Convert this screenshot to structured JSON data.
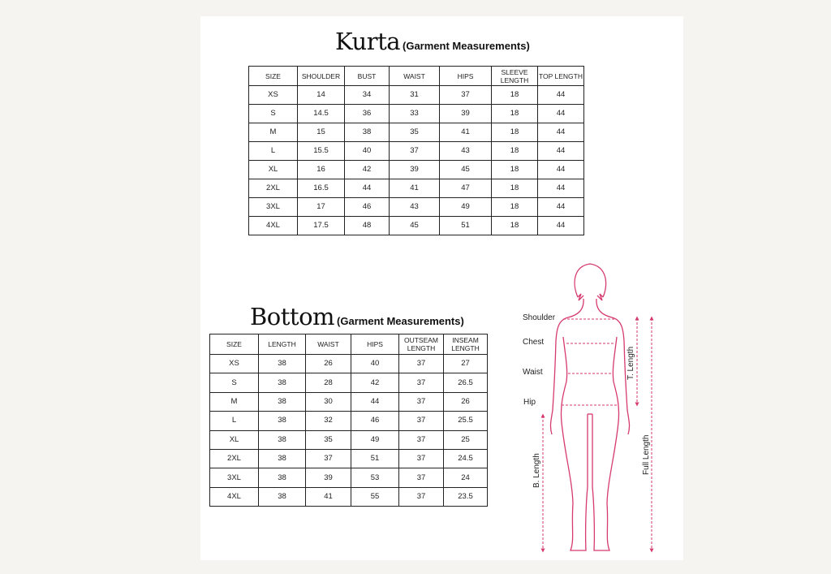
{
  "kurta": {
    "title": "Kurta",
    "subtitle": "(Garment Measurements)",
    "headers": [
      "SIZE",
      "SHOULDER",
      "BUST",
      "WAIST",
      "HIPS",
      "SLEEVE LENGTH",
      "TOP LENGTH"
    ],
    "rows": [
      [
        "XS",
        "14",
        "34",
        "31",
        "37",
        "18",
        "44"
      ],
      [
        "S",
        "14.5",
        "36",
        "33",
        "39",
        "18",
        "44"
      ],
      [
        "M",
        "15",
        "38",
        "35",
        "41",
        "18",
        "44"
      ],
      [
        "L",
        "15.5",
        "40",
        "37",
        "43",
        "18",
        "44"
      ],
      [
        "XL",
        "16",
        "42",
        "39",
        "45",
        "18",
        "44"
      ],
      [
        "2XL",
        "16.5",
        "44",
        "41",
        "47",
        "18",
        "44"
      ],
      [
        "3XL",
        "17",
        "46",
        "43",
        "49",
        "18",
        "44"
      ],
      [
        "4XL",
        "17.5",
        "48",
        "45",
        "51",
        "18",
        "44"
      ]
    ]
  },
  "bottom": {
    "title": "Bottom",
    "subtitle": "(Garment Measurements)",
    "headers": [
      "SIZE",
      "LENGTH",
      "WAIST",
      "HIPS",
      "OUTSEAM LENGTH",
      "INSEAM LENGTH"
    ],
    "rows": [
      [
        "XS",
        "38",
        "26",
        "40",
        "37",
        "27"
      ],
      [
        "S",
        "38",
        "28",
        "42",
        "37",
        "26.5"
      ],
      [
        "M",
        "38",
        "30",
        "44",
        "37",
        "26"
      ],
      [
        "L",
        "38",
        "32",
        "46",
        "37",
        "25.5"
      ],
      [
        "XL",
        "38",
        "35",
        "49",
        "37",
        "25"
      ],
      [
        "2XL",
        "38",
        "37",
        "51",
        "37",
        "24.5"
      ],
      [
        "3XL",
        "38",
        "39",
        "53",
        "37",
        "24"
      ],
      [
        "4XL",
        "38",
        "41",
        "55",
        "37",
        "23.5"
      ]
    ]
  },
  "figure": {
    "labels": {
      "shoulder": "Shoulder",
      "chest": "Chest",
      "waist": "Waist",
      "hip": "Hip",
      "t_length": "T. Length",
      "full_length": "Full Length",
      "b_length": "B. Length"
    },
    "line_color": "#d63a6e"
  }
}
